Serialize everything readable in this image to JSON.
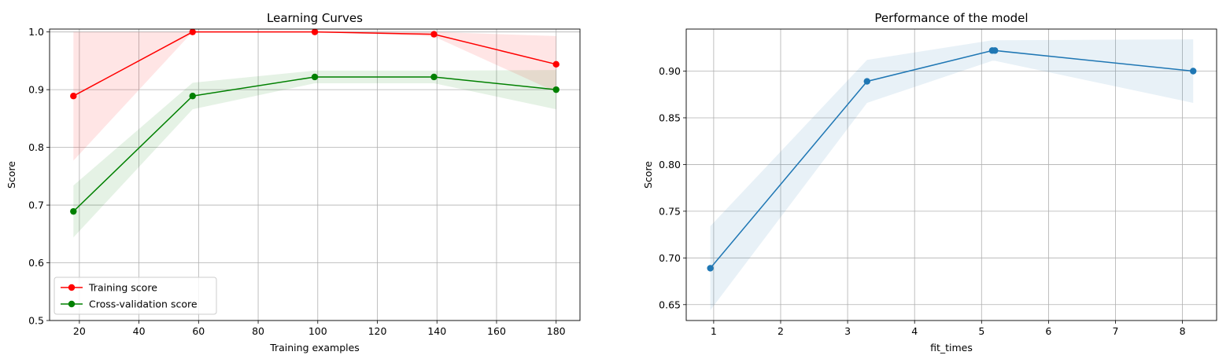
{
  "chart_data": [
    {
      "type": "line",
      "title": "Learning Curves",
      "xlabel": "Training examples",
      "ylabel": "Score",
      "xlim": [
        10,
        188
      ],
      "ylim": [
        0.5,
        1.005
      ],
      "grid": true,
      "legend_position": "lower-left",
      "xticks": [
        20,
        40,
        60,
        80,
        100,
        120,
        140,
        160,
        180
      ],
      "xtick_labels": [
        "20",
        "40",
        "60",
        "80",
        "100",
        "120",
        "140",
        "160",
        "180"
      ],
      "yticks": [
        0.5,
        0.6,
        0.7,
        0.8,
        0.9,
        1.0
      ],
      "ytick_labels": [
        "0.5",
        "0.6",
        "0.7",
        "0.8",
        "0.9",
        "1.0"
      ],
      "x": [
        18,
        58,
        99,
        139,
        180
      ],
      "series": [
        {
          "name": "Training score",
          "color": "#ff0000",
          "band_color": "#ff0000",
          "values": [
            0.889,
            1.0,
            1.0,
            0.996,
            0.944
          ],
          "band_low": [
            0.777,
            1.0,
            1.0,
            0.992,
            0.896
          ],
          "band_high": [
            1.0,
            1.0,
            1.0,
            1.0,
            0.993
          ]
        },
        {
          "name": "Cross-validation score",
          "color": "#008000",
          "band_color": "#008000",
          "values": [
            0.689,
            0.889,
            0.922,
            0.922,
            0.9
          ],
          "band_low": [
            0.644,
            0.866,
            0.911,
            0.911,
            0.866
          ],
          "band_high": [
            0.734,
            0.912,
            0.933,
            0.933,
            0.934
          ]
        }
      ]
    },
    {
      "type": "line",
      "title": "Performance of the model",
      "xlabel": "fit_times",
      "ylabel": "Score",
      "xlim": [
        0.59,
        8.51
      ],
      "ylim": [
        0.633,
        0.945
      ],
      "grid": true,
      "xticks": [
        1,
        2,
        3,
        4,
        5,
        6,
        7,
        8
      ],
      "xtick_labels": [
        "1",
        "2",
        "3",
        "4",
        "5",
        "6",
        "7",
        "8"
      ],
      "yticks": [
        0.65,
        0.7,
        0.75,
        0.8,
        0.85,
        0.9
      ],
      "ytick_labels": [
        "0.65",
        "0.70",
        "0.75",
        "0.80",
        "0.85",
        "0.90"
      ],
      "series": [
        {
          "color": "#1f77b4",
          "band_color": "#1f77b4",
          "x": [
            0.95,
            3.29,
            5.16,
            5.2,
            8.16
          ],
          "values": [
            0.689,
            0.889,
            0.922,
            0.922,
            0.9
          ],
          "band_low": [
            0.644,
            0.866,
            0.911,
            0.911,
            0.866
          ],
          "band_high": [
            0.734,
            0.912,
            0.933,
            0.933,
            0.934
          ]
        }
      ]
    }
  ]
}
